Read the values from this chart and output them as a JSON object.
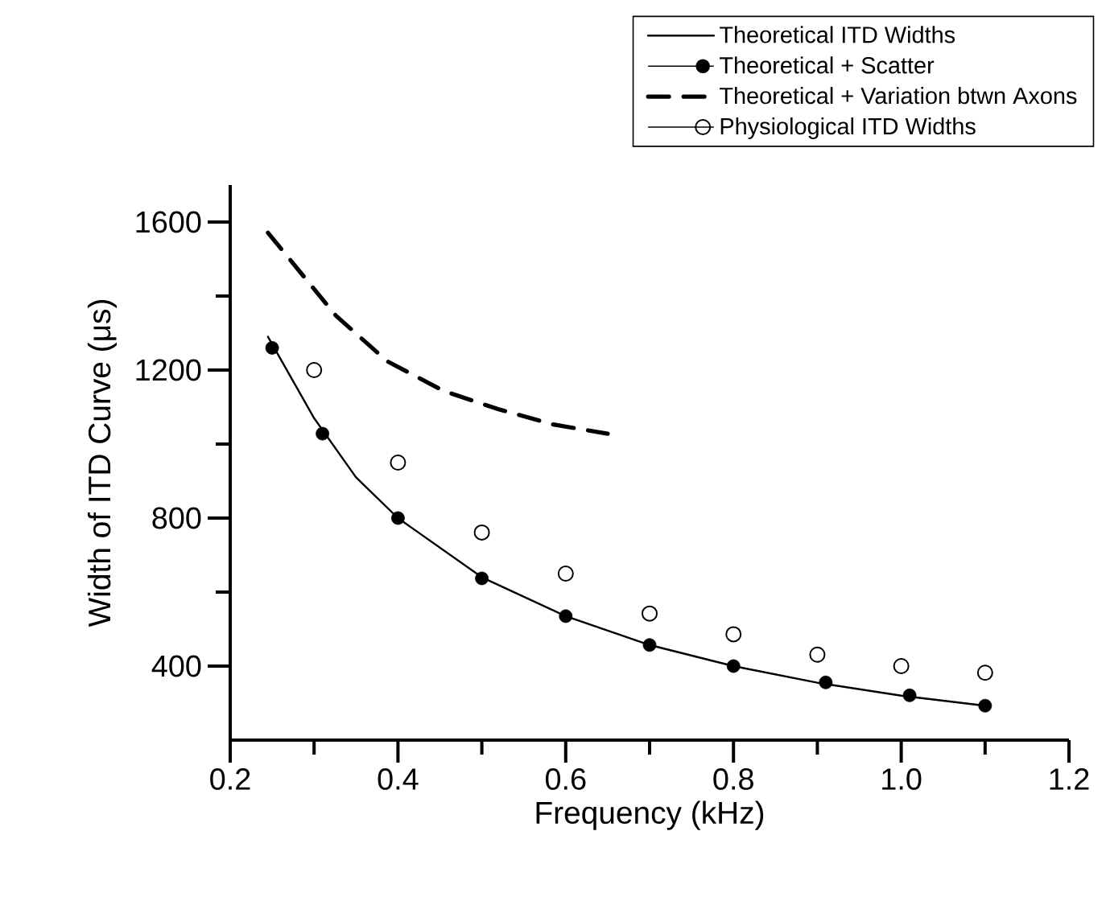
{
  "chart_data": {
    "type": "line",
    "xlabel": "Frequency (kHz)",
    "ylabel": "Width of ITD Curve (μs)",
    "xlim": [
      0.2,
      1.2
    ],
    "ylim": [
      200,
      1700
    ],
    "xticks": [
      {
        "value": 0.2,
        "label": "0.2"
      },
      {
        "value": 0.3,
        "label": null
      },
      {
        "value": 0.4,
        "label": "0.4"
      },
      {
        "value": 0.5,
        "label": null
      },
      {
        "value": 0.6,
        "label": "0.6"
      },
      {
        "value": 0.7,
        "label": null
      },
      {
        "value": 0.8,
        "label": "0.8"
      },
      {
        "value": 0.9,
        "label": null
      },
      {
        "value": 1.0,
        "label": "1.0"
      },
      {
        "value": 1.1,
        "label": null
      },
      {
        "value": 1.2,
        "label": "1.2"
      }
    ],
    "yticks": [
      {
        "value": 400,
        "label": "400"
      },
      {
        "value": 600,
        "label": null
      },
      {
        "value": 800,
        "label": "800"
      },
      {
        "value": 1000,
        "label": null
      },
      {
        "value": 1200,
        "label": "1200"
      },
      {
        "value": 1400,
        "label": null
      },
      {
        "value": 1600,
        "label": "1600"
      }
    ],
    "legend": "top right",
    "series": [
      {
        "name": "Theoretical ITD Widths",
        "line_style": "solid",
        "color": "#000000",
        "x": [
          0.245,
          0.3,
          0.35,
          0.4,
          0.5,
          0.6,
          0.7,
          0.8,
          0.9,
          1.0,
          1.1
        ],
        "values": [
          1290,
          1070,
          910,
          800,
          640,
          535,
          457,
          400,
          355,
          320,
          293
        ]
      },
      {
        "name": "Theoretical + Scatter",
        "type": "scatter",
        "color": "#000000",
        "x": [
          0.25,
          0.31,
          0.4,
          0.5,
          0.6,
          0.7,
          0.8,
          0.91,
          1.01,
          1.1
        ],
        "values": [
          1260,
          1028,
          800,
          637,
          535,
          457,
          400,
          356,
          321,
          293
        ]
      },
      {
        "name": "Theoretical + Variation btwn Axons",
        "line_style": "dashed",
        "color": "#000000",
        "x": [
          0.245,
          0.326,
          0.387,
          0.455,
          0.52,
          0.585,
          0.65
        ],
        "values": [
          1571,
          1347,
          1224,
          1143,
          1094,
          1053,
          1028
        ]
      },
      {
        "name": "Physiological ITD Widths",
        "type": "scatter",
        "marker": "circle",
        "color": "#000000",
        "x": [
          0.3,
          0.4,
          0.5,
          0.6,
          0.7,
          0.8,
          0.9,
          1.0,
          1.1
        ],
        "values": [
          1200,
          950,
          761,
          650,
          542,
          486,
          431,
          400,
          382
        ]
      }
    ]
  }
}
